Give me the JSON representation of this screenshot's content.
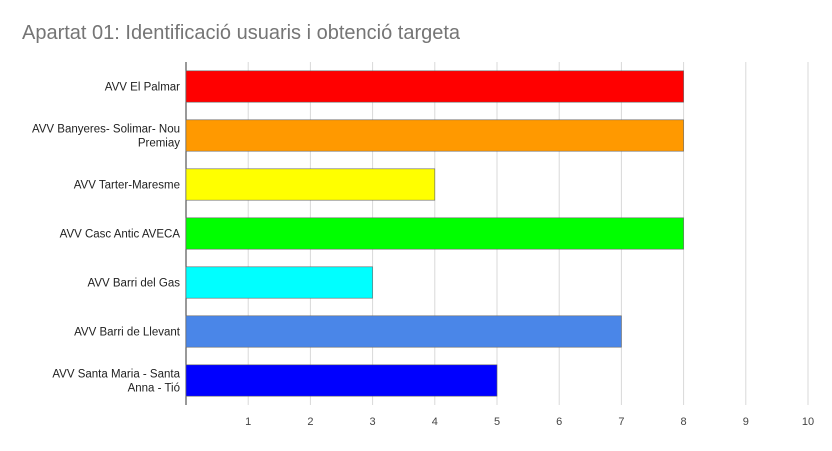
{
  "chart_data": {
    "type": "bar",
    "orientation": "horizontal",
    "title": "Apartat 01: Identificació usuaris i obtenció targeta",
    "categories": [
      [
        "AVV El Palmar"
      ],
      [
        "AVV Banyeres- Solimar- Nou",
        "Premiay"
      ],
      [
        "AVV Tarter-Maresme"
      ],
      [
        "AVV Casc Antic AVECA"
      ],
      [
        "AVV Barri del Gas"
      ],
      [
        "AVV Barri de Llevant"
      ],
      [
        "AVV Santa Maria - Santa",
        "Anna - Tió"
      ]
    ],
    "values": [
      8,
      8,
      4,
      8,
      3,
      7,
      5
    ],
    "colors": [
      "#ff0000",
      "#ff9900",
      "#ffff00",
      "#00ff00",
      "#00ffff",
      "#4a86e8",
      "#0000ff"
    ],
    "xlim": [
      0,
      10
    ],
    "xticks": [
      1,
      2,
      3,
      4,
      5,
      6,
      7,
      8,
      9,
      10
    ],
    "grid": true,
    "legend": "none"
  }
}
